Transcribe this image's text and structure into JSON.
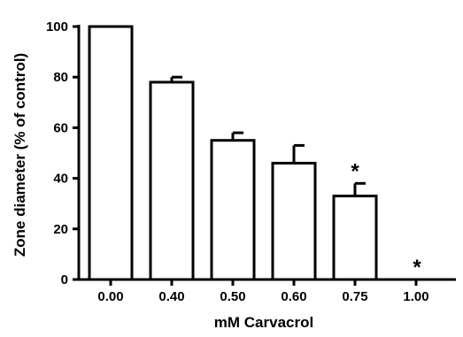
{
  "chart_data": {
    "type": "bar",
    "title": "",
    "xlabel": "mM Carvacrol",
    "ylabel": "Zone diameter (% of control)",
    "categories": [
      "0.00",
      "0.40",
      "0.50",
      "0.60",
      "0.75",
      "1.00"
    ],
    "values": [
      100,
      78,
      55,
      46,
      33,
      0
    ],
    "errors": [
      0,
      2,
      3,
      7,
      5,
      0
    ],
    "significance": [
      "",
      "",
      "",
      "",
      "*",
      "*"
    ],
    "ylim": [
      0,
      100
    ],
    "yticks": [
      "0",
      "20",
      "40",
      "60",
      "80",
      "100"
    ],
    "grid": false,
    "legend": "none",
    "colors": {
      "bar_fill": "#ffffff",
      "stroke": "#000000"
    }
  }
}
